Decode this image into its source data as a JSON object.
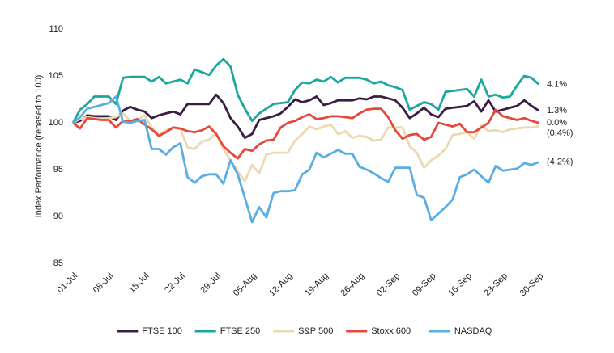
{
  "chart_data": {
    "type": "line",
    "y_label": "Index Performance (rebased to 100)",
    "categories": [
      "01-Jul",
      null,
      null,
      null,
      null,
      "08-Jul",
      null,
      null,
      null,
      null,
      "15-Jul",
      null,
      null,
      null,
      null,
      "22-Jul",
      null,
      null,
      null,
      null,
      "29-Jul",
      null,
      null,
      null,
      null,
      "05-Aug",
      null,
      null,
      null,
      null,
      "12-Aug",
      null,
      null,
      null,
      null,
      "19-Aug",
      null,
      null,
      null,
      null,
      "26-Aug",
      null,
      null,
      null,
      null,
      "02-Sep",
      null,
      null,
      null,
      null,
      "09-Sep",
      null,
      null,
      null,
      null,
      "16-Sep",
      null,
      null,
      null,
      null,
      "23-Sep",
      null,
      null,
      null,
      null,
      "30-Sep"
    ],
    "ylim": [
      85,
      110
    ],
    "yticks": [
      85,
      90,
      95,
      100,
      105,
      110
    ],
    "grid": false,
    "series": [
      {
        "name": "FTSE 100",
        "color": "#3a1d44",
        "end_label": "1.3%",
        "values": [
          100,
          100.2,
          100.8,
          100.7,
          100.7,
          100.7,
          100.3,
          101.3,
          101.7,
          101.4,
          101.2,
          100.5,
          100.8,
          101,
          101.2,
          100.9,
          102,
          102,
          102,
          102,
          103,
          102.1,
          100.5,
          99.6,
          98.4,
          98.8,
          100.3,
          100.5,
          100.7,
          101,
          101.7,
          102.5,
          102.2,
          102.4,
          102.8,
          101.9,
          102.1,
          102.4,
          102.4,
          102.4,
          102.6,
          102.5,
          102.8,
          102.8,
          102.6,
          102.4,
          101.6,
          100.5,
          101,
          101.6,
          100.9,
          100.6,
          101.5,
          101.6,
          101.7,
          101.8,
          102.3,
          101.2,
          102.4,
          101.2,
          101.4,
          101.6,
          101.8,
          102.4,
          101.8,
          101.3
        ]
      },
      {
        "name": "FTSE 250",
        "color": "#1ba89c",
        "end_label": "4.1%",
        "values": [
          100,
          101.4,
          102,
          102.8,
          102.8,
          102.8,
          102,
          104.8,
          104.9,
          104.9,
          104.9,
          104.4,
          104.9,
          104.2,
          104.4,
          104.6,
          104.2,
          105.7,
          105.4,
          105.1,
          106.1,
          106.8,
          106,
          103,
          101.5,
          100.2,
          101,
          101.5,
          102,
          102.1,
          102.2,
          103.5,
          104.3,
          104.2,
          104.6,
          104.4,
          104.9,
          104.3,
          104.8,
          104.8,
          104.8,
          104.6,
          104.2,
          104.4,
          104,
          103.8,
          103.5,
          101.4,
          101.8,
          102.2,
          102,
          101.4,
          103.3,
          103.4,
          103.5,
          103.6,
          102.8,
          104.6,
          102.8,
          103,
          102.7,
          102.8,
          104,
          105,
          104.8,
          104.1
        ]
      },
      {
        "name": "S&P 500",
        "color": "#ecd9b0",
        "end_label": "(0.4%)",
        "values": [
          100,
          100.4,
          100.6,
          100.5,
          100.4,
          100.5,
          100.6,
          101,
          100.2,
          100.3,
          100.8,
          99.5,
          98.7,
          99.2,
          99.5,
          99.3,
          97.4,
          97.2,
          98,
          98.2,
          98.9,
          97.2,
          96,
          94.8,
          93.8,
          95.5,
          94.6,
          96.6,
          96.8,
          96.8,
          96.8,
          98.1,
          98.8,
          99.6,
          99.3,
          99.6,
          99.8,
          98.8,
          99.1,
          98.4,
          98.6,
          98.5,
          98.1,
          98.2,
          99.5,
          99.5,
          99.5,
          97.5,
          96.8,
          95.2,
          96,
          96.5,
          97.2,
          98.7,
          98.8,
          99,
          98.3,
          99.7,
          99.1,
          99.2,
          99,
          99.3,
          99.4,
          99.5,
          99.5,
          99.6
        ]
      },
      {
        "name": "Stoxx 600",
        "color": "#e4493b",
        "end_label": "0.0%",
        "values": [
          100,
          99.4,
          100.5,
          100.4,
          100.3,
          100.3,
          99.5,
          100.2,
          100.2,
          100.4,
          99.8,
          99.3,
          98.6,
          99,
          99.5,
          99.4,
          99.1,
          99,
          99.2,
          99.6,
          98.8,
          97.5,
          96.8,
          96.2,
          97.2,
          97,
          97.7,
          98.1,
          98.2,
          99.5,
          100,
          100.2,
          100.6,
          100.9,
          100.4,
          100.5,
          100.7,
          100.7,
          100.6,
          100.5,
          101,
          101.4,
          101.5,
          101.5,
          100.6,
          99.2,
          98.3,
          98.7,
          98.8,
          98.2,
          98.5,
          100,
          99.8,
          99.6,
          99.9,
          99,
          99,
          99.5,
          100,
          101.4,
          100.7,
          100.5,
          100.3,
          100.5,
          100.2,
          100
        ]
      },
      {
        "name": "NASDAQ",
        "color": "#5baee2",
        "end_label": "(4.2%)",
        "values": [
          100,
          100.6,
          101.5,
          101.7,
          101.9,
          102.1,
          102.8,
          100.1,
          100,
          100.2,
          100.3,
          97.2,
          97.2,
          96.6,
          97.4,
          97.8,
          94.2,
          93.6,
          94.3,
          94.5,
          94.5,
          93.5,
          96,
          94.5,
          92,
          89.4,
          91,
          89.9,
          92.5,
          92.7,
          92.7,
          92.8,
          94.5,
          95,
          96.8,
          96.3,
          96.7,
          97.1,
          96.7,
          96.7,
          95.3,
          95,
          94.6,
          94.1,
          93.7,
          95.2,
          95.2,
          95.2,
          92.3,
          92,
          89.6,
          90.3,
          91,
          91.8,
          94.2,
          94.5,
          95,
          94.3,
          93.6,
          95.4,
          94.9,
          95,
          95.1,
          95.7,
          95.5,
          95.8
        ]
      }
    ]
  }
}
